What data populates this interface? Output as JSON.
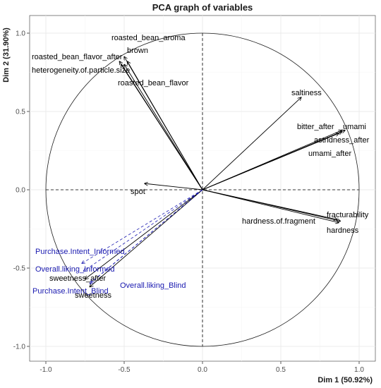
{
  "chart_data": {
    "type": "scatter",
    "title": "PCA graph of variables",
    "xlabel": "Dim 1 (50.92%)",
    "ylabel": "Dim 2 (31.90%)",
    "xlim": [
      -1.1,
      1.1
    ],
    "ylim": [
      -1.1,
      1.07
    ],
    "xticks": [
      "-1.0",
      "-0.5",
      "0.0",
      "0.5",
      "1.0"
    ],
    "yticks": [
      "1.0",
      "0.5",
      "0.0",
      "-0.5",
      "-1.0"
    ],
    "grid": true,
    "unit_circle": true,
    "colors": {
      "active": "#000000",
      "supplementary": "#1a1ab0",
      "grid": "#ebebeb",
      "minor_grid": "#f5f5f5"
    },
    "variables": [
      {
        "name": "roasted_bean_aroma",
        "x": -0.48,
        "y": 0.82,
        "supplementary": false
      },
      {
        "name": "brown",
        "x": -0.5,
        "y": 0.85,
        "supplementary": false
      },
      {
        "name": "roasted_bean_flavor_after",
        "x": -0.53,
        "y": 0.82,
        "supplementary": false
      },
      {
        "name": "heterogeneity.of.particle.size",
        "x": -0.52,
        "y": 0.8,
        "supplementary": false
      },
      {
        "name": "roasted_bean_flavor",
        "x": -0.5,
        "y": 0.8,
        "supplementary": false
      },
      {
        "name": "saltiness",
        "x": 0.63,
        "y": 0.59,
        "supplementary": false
      },
      {
        "name": "bitter_after",
        "x": 0.89,
        "y": 0.38,
        "supplementary": false
      },
      {
        "name": "umami",
        "x": 0.91,
        "y": 0.38,
        "supplementary": false
      },
      {
        "name": "astridness_after",
        "x": 0.89,
        "y": 0.37,
        "supplementary": false
      },
      {
        "name": "umami_after",
        "x": 0.87,
        "y": 0.36,
        "supplementary": false
      },
      {
        "name": "spot",
        "x": -0.37,
        "y": 0.04,
        "supplementary": false
      },
      {
        "name": "fracturability",
        "x": 0.88,
        "y": -0.2,
        "supplementary": false
      },
      {
        "name": "hardness",
        "x": 0.87,
        "y": -0.21,
        "supplementary": false
      },
      {
        "name": "hardness.of.fragment",
        "x": 0.86,
        "y": -0.19,
        "supplementary": false
      },
      {
        "name": "sweetness_after",
        "x": -0.75,
        "y": -0.57,
        "supplementary": false
      },
      {
        "name": "sweetness",
        "x": -0.72,
        "y": -0.62,
        "supplementary": false
      },
      {
        "name": "Purchase.Intent_Informed",
        "x": -0.77,
        "y": -0.47,
        "supplementary": true
      },
      {
        "name": "Overall.liking_Informed",
        "x": -0.76,
        "y": -0.52,
        "supplementary": true
      },
      {
        "name": "Overall.liking_Blind",
        "x": -0.71,
        "y": -0.59,
        "supplementary": true
      },
      {
        "name": "Purchase.Intent_Blind",
        "x": -0.72,
        "y": -0.6,
        "supplementary": true
      }
    ]
  }
}
